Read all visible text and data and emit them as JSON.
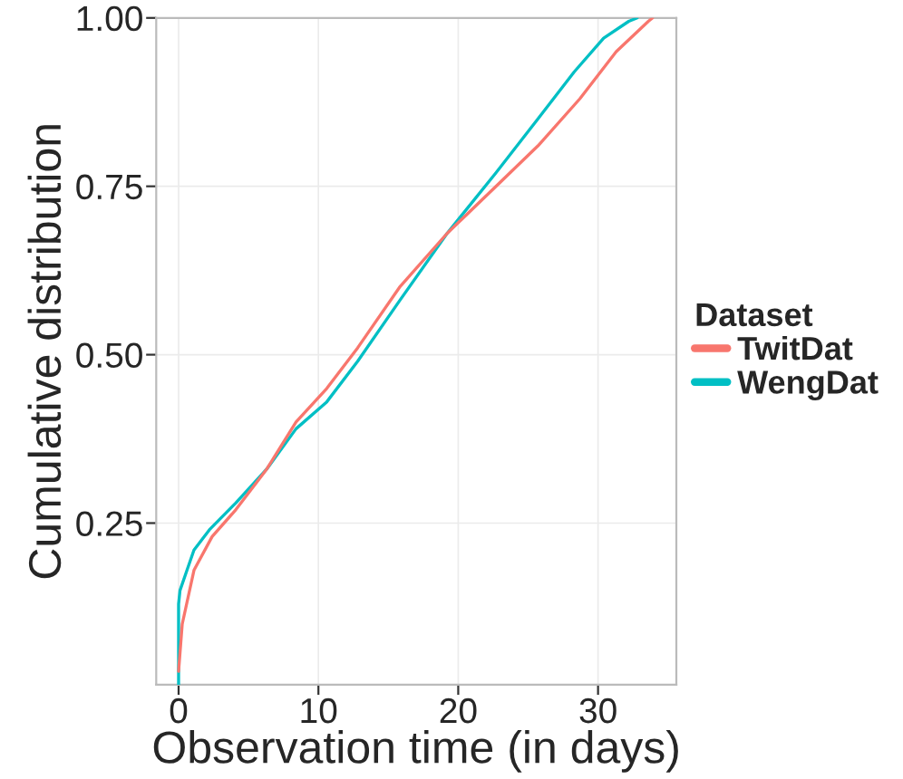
{
  "chart_data": {
    "type": "line",
    "xlabel": "Observation time (in days)",
    "ylabel": "Cumulative distribution",
    "legend_title": "Dataset",
    "xlim": [
      -1.6,
      35.6
    ],
    "ylim": [
      0.01,
      1.0
    ],
    "xticks": [
      0,
      10,
      20,
      30
    ],
    "yticks": [
      {
        "value": 0.25,
        "label": "0.25"
      },
      {
        "value": 0.5,
        "label": "0.50"
      },
      {
        "value": 0.75,
        "label": "0.75"
      },
      {
        "value": 1.0,
        "label": "1.00"
      }
    ],
    "grid": true,
    "legend": "right",
    "marker": "none",
    "line_style": "solid",
    "series": [
      {
        "name": "TwitDat",
        "color": "#f8766d",
        "x": [
          0,
          0.26,
          1.1,
          2.4,
          4.1,
          6.3,
          8.4,
          10.6,
          12.8,
          15.8,
          19.2,
          22.7,
          25.7,
          28.7,
          31.3,
          33.6,
          33.9
        ],
        "values": [
          0.03,
          0.1,
          0.18,
          0.23,
          0.27,
          0.33,
          0.4,
          0.45,
          0.51,
          0.6,
          0.68,
          0.75,
          0.81,
          0.88,
          0.95,
          0.995,
          1.0
        ]
      },
      {
        "name": "WengDat",
        "color": "#00bfc4",
        "x": [
          0,
          0,
          0.1,
          0.6,
          1.1,
          2.2,
          4.1,
          6.3,
          8.4,
          10.6,
          12.8,
          15.8,
          19.2,
          22.7,
          25.7,
          28.3,
          30.4,
          32.2,
          32.8
        ],
        "values": [
          0.01,
          0.13,
          0.15,
          0.18,
          0.21,
          0.24,
          0.28,
          0.33,
          0.39,
          0.43,
          0.49,
          0.58,
          0.68,
          0.77,
          0.85,
          0.92,
          0.97,
          0.995,
          1.0
        ]
      }
    ]
  }
}
